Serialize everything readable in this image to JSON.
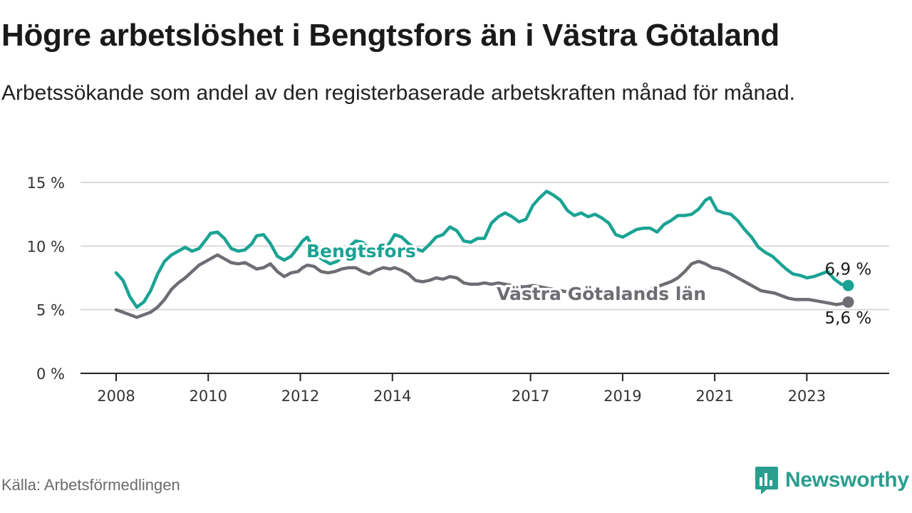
{
  "title": "Högre arbetslöshet i Bengtsfors än i Västra Götaland",
  "subtitle": "Arbetssökande som andel av den registerbaserade arbetskraften månad för månad.",
  "source": "Källa: Arbetsförmedlingen",
  "brand": "Newsworthy",
  "colors": {
    "bengtsfors": "#1aa394",
    "vastra": "#6e6d73",
    "brand": "#2a9d8f",
    "grid": "#d9d9d9",
    "axis": "#222222"
  },
  "chart_data": {
    "type": "line",
    "title": "Högre arbetslöshet i Bengtsfors än i Västra Götaland",
    "xlabel": "",
    "ylabel": "",
    "xlim": [
      2008.0,
      2024.0
    ],
    "ylim": [
      0,
      15
    ],
    "grid": true,
    "y_ticks": [
      {
        "value": 0,
        "label": "0 %"
      },
      {
        "value": 5,
        "label": "5 %"
      },
      {
        "value": 10,
        "label": "10 %"
      },
      {
        "value": 15,
        "label": "15 %"
      }
    ],
    "x_ticks": [
      {
        "value": 2008,
        "label": "2008"
      },
      {
        "value": 2010,
        "label": "2010"
      },
      {
        "value": 2012,
        "label": "2012"
      },
      {
        "value": 2014,
        "label": "2014"
      },
      {
        "value": 2017,
        "label": "2017"
      },
      {
        "value": 2019,
        "label": "2019"
      },
      {
        "value": 2021,
        "label": "2021"
      },
      {
        "value": 2023,
        "label": "2023"
      }
    ],
    "series": [
      {
        "name": "Bengtsfors",
        "color": "#1aa394",
        "end_label": "6,9 %",
        "points": [
          [
            2008.0,
            7.9
          ],
          [
            2008.15,
            7.3
          ],
          [
            2008.3,
            6.0
          ],
          [
            2008.45,
            5.2
          ],
          [
            2008.6,
            5.6
          ],
          [
            2008.75,
            6.5
          ],
          [
            2008.9,
            7.8
          ],
          [
            2009.05,
            8.8
          ],
          [
            2009.2,
            9.3
          ],
          [
            2009.35,
            9.6
          ],
          [
            2009.5,
            9.9
          ],
          [
            2009.65,
            9.6
          ],
          [
            2009.8,
            9.8
          ],
          [
            2009.95,
            10.5
          ],
          [
            2010.05,
            11.0
          ],
          [
            2010.2,
            11.1
          ],
          [
            2010.35,
            10.6
          ],
          [
            2010.5,
            9.8
          ],
          [
            2010.65,
            9.6
          ],
          [
            2010.8,
            9.7
          ],
          [
            2010.95,
            10.2
          ],
          [
            2011.05,
            10.8
          ],
          [
            2011.2,
            10.9
          ],
          [
            2011.35,
            10.2
          ],
          [
            2011.5,
            9.2
          ],
          [
            2011.65,
            8.9
          ],
          [
            2011.8,
            9.2
          ],
          [
            2011.95,
            9.9
          ],
          [
            2012.05,
            10.4
          ],
          [
            2012.15,
            10.7
          ],
          [
            2012.25,
            10.0
          ],
          [
            2012.35,
            9.3
          ],
          [
            2012.5,
            8.9
          ],
          [
            2012.65,
            8.6
          ],
          [
            2012.8,
            8.8
          ],
          [
            2012.95,
            9.3
          ],
          [
            2013.05,
            9.9
          ],
          [
            2013.2,
            10.4
          ],
          [
            2013.35,
            10.3
          ],
          [
            2013.5,
            9.7
          ],
          [
            2013.65,
            9.3
          ],
          [
            2013.8,
            9.6
          ],
          [
            2013.95,
            10.3
          ],
          [
            2014.05,
            10.9
          ],
          [
            2014.2,
            10.7
          ],
          [
            2014.35,
            10.2
          ],
          [
            2014.5,
            9.8
          ],
          [
            2014.65,
            9.6
          ],
          [
            2014.8,
            10.1
          ],
          [
            2014.95,
            10.7
          ],
          [
            2015.1,
            10.9
          ],
          [
            2015.25,
            11.5
          ],
          [
            2015.4,
            11.2
          ],
          [
            2015.55,
            10.4
          ],
          [
            2015.7,
            10.3
          ],
          [
            2015.85,
            10.6
          ],
          [
            2016.0,
            10.6
          ],
          [
            2016.15,
            11.8
          ],
          [
            2016.3,
            12.3
          ],
          [
            2016.45,
            12.6
          ],
          [
            2016.6,
            12.3
          ],
          [
            2016.75,
            11.9
          ],
          [
            2016.9,
            12.1
          ],
          [
            2017.05,
            13.2
          ],
          [
            2017.2,
            13.8
          ],
          [
            2017.35,
            14.3
          ],
          [
            2017.5,
            14.0
          ],
          [
            2017.65,
            13.6
          ],
          [
            2017.8,
            12.8
          ],
          [
            2017.95,
            12.4
          ],
          [
            2018.1,
            12.6
          ],
          [
            2018.25,
            12.3
          ],
          [
            2018.4,
            12.5
          ],
          [
            2018.55,
            12.2
          ],
          [
            2018.7,
            11.8
          ],
          [
            2018.85,
            10.9
          ],
          [
            2019.0,
            10.7
          ],
          [
            2019.15,
            11.0
          ],
          [
            2019.3,
            11.3
          ],
          [
            2019.45,
            11.4
          ],
          [
            2019.6,
            11.4
          ],
          [
            2019.75,
            11.1
          ],
          [
            2019.9,
            11.7
          ],
          [
            2020.05,
            12.0
          ],
          [
            2020.2,
            12.4
          ],
          [
            2020.35,
            12.4
          ],
          [
            2020.5,
            12.5
          ],
          [
            2020.65,
            12.9
          ],
          [
            2020.8,
            13.6
          ],
          [
            2020.9,
            13.8
          ],
          [
            2021.05,
            12.8
          ],
          [
            2021.2,
            12.6
          ],
          [
            2021.35,
            12.5
          ],
          [
            2021.5,
            12.0
          ],
          [
            2021.65,
            11.3
          ],
          [
            2021.8,
            10.7
          ],
          [
            2021.95,
            9.9
          ],
          [
            2022.1,
            9.5
          ],
          [
            2022.25,
            9.2
          ],
          [
            2022.4,
            8.7
          ],
          [
            2022.55,
            8.2
          ],
          [
            2022.7,
            7.8
          ],
          [
            2022.85,
            7.7
          ],
          [
            2023.0,
            7.5
          ],
          [
            2023.15,
            7.6
          ],
          [
            2023.3,
            7.8
          ],
          [
            2023.45,
            8.0
          ],
          [
            2023.6,
            7.4
          ],
          [
            2023.75,
            7.0
          ],
          [
            2023.9,
            6.9
          ]
        ]
      },
      {
        "name": "Västra Götalands län",
        "color": "#6e6d73",
        "end_label": "5,6 %",
        "points": [
          [
            2008.0,
            5.0
          ],
          [
            2008.15,
            4.8
          ],
          [
            2008.3,
            4.6
          ],
          [
            2008.45,
            4.4
          ],
          [
            2008.6,
            4.6
          ],
          [
            2008.75,
            4.8
          ],
          [
            2008.9,
            5.2
          ],
          [
            2009.05,
            5.8
          ],
          [
            2009.2,
            6.6
          ],
          [
            2009.35,
            7.1
          ],
          [
            2009.5,
            7.5
          ],
          [
            2009.65,
            8.0
          ],
          [
            2009.8,
            8.5
          ],
          [
            2009.95,
            8.8
          ],
          [
            2010.05,
            9.0
          ],
          [
            2010.2,
            9.3
          ],
          [
            2010.35,
            9.0
          ],
          [
            2010.5,
            8.7
          ],
          [
            2010.65,
            8.6
          ],
          [
            2010.8,
            8.7
          ],
          [
            2010.95,
            8.4
          ],
          [
            2011.05,
            8.2
          ],
          [
            2011.2,
            8.3
          ],
          [
            2011.35,
            8.6
          ],
          [
            2011.5,
            8.0
          ],
          [
            2011.65,
            7.6
          ],
          [
            2011.8,
            7.9
          ],
          [
            2011.95,
            8.0
          ],
          [
            2012.05,
            8.3
          ],
          [
            2012.15,
            8.5
          ],
          [
            2012.3,
            8.4
          ],
          [
            2012.45,
            8.0
          ],
          [
            2012.6,
            7.9
          ],
          [
            2012.75,
            8.0
          ],
          [
            2012.9,
            8.2
          ],
          [
            2013.05,
            8.3
          ],
          [
            2013.2,
            8.3
          ],
          [
            2013.35,
            8.0
          ],
          [
            2013.5,
            7.8
          ],
          [
            2013.65,
            8.1
          ],
          [
            2013.8,
            8.3
          ],
          [
            2013.95,
            8.2
          ],
          [
            2014.05,
            8.3
          ],
          [
            2014.2,
            8.1
          ],
          [
            2014.35,
            7.8
          ],
          [
            2014.5,
            7.3
          ],
          [
            2014.65,
            7.2
          ],
          [
            2014.8,
            7.3
          ],
          [
            2014.95,
            7.5
          ],
          [
            2015.1,
            7.4
          ],
          [
            2015.25,
            7.6
          ],
          [
            2015.4,
            7.5
          ],
          [
            2015.55,
            7.1
          ],
          [
            2015.7,
            7.0
          ],
          [
            2015.85,
            7.0
          ],
          [
            2016.0,
            7.1
          ],
          [
            2016.15,
            7.0
          ],
          [
            2016.3,
            7.1
          ],
          [
            2016.45,
            7.0
          ],
          [
            2016.6,
            6.9
          ],
          [
            2016.75,
            6.8
          ],
          [
            2016.9,
            6.8
          ],
          [
            2017.05,
            6.9
          ],
          [
            2017.2,
            6.8
          ],
          [
            2017.35,
            6.7
          ],
          [
            2017.5,
            6.6
          ],
          [
            2017.65,
            6.5
          ],
          [
            2017.8,
            6.4
          ],
          [
            2017.95,
            6.4
          ],
          [
            2018.1,
            6.5
          ],
          [
            2018.25,
            6.5
          ],
          [
            2018.4,
            6.4
          ],
          [
            2018.55,
            6.4
          ],
          [
            2018.7,
            6.3
          ],
          [
            2018.85,
            6.3
          ],
          [
            2019.0,
            6.2
          ],
          [
            2019.15,
            6.2
          ],
          [
            2019.3,
            6.3
          ],
          [
            2019.45,
            6.4
          ],
          [
            2019.6,
            6.6
          ],
          [
            2019.75,
            6.8
          ],
          [
            2019.9,
            7.0
          ],
          [
            2020.05,
            7.2
          ],
          [
            2020.2,
            7.5
          ],
          [
            2020.35,
            8.0
          ],
          [
            2020.5,
            8.6
          ],
          [
            2020.65,
            8.8
          ],
          [
            2020.8,
            8.6
          ],
          [
            2020.95,
            8.3
          ],
          [
            2021.1,
            8.2
          ],
          [
            2021.25,
            8.0
          ],
          [
            2021.4,
            7.7
          ],
          [
            2021.55,
            7.4
          ],
          [
            2021.7,
            7.1
          ],
          [
            2021.85,
            6.8
          ],
          [
            2022.0,
            6.5
          ],
          [
            2022.15,
            6.4
          ],
          [
            2022.3,
            6.3
          ],
          [
            2022.45,
            6.1
          ],
          [
            2022.6,
            5.9
          ],
          [
            2022.75,
            5.8
          ],
          [
            2022.9,
            5.8
          ],
          [
            2023.05,
            5.8
          ],
          [
            2023.2,
            5.7
          ],
          [
            2023.35,
            5.6
          ],
          [
            2023.5,
            5.5
          ],
          [
            2023.65,
            5.4
          ],
          [
            2023.8,
            5.5
          ],
          [
            2023.9,
            5.6
          ]
        ]
      }
    ],
    "annotations": [
      "Bengtsfors",
      "Västra Götalands län"
    ]
  }
}
